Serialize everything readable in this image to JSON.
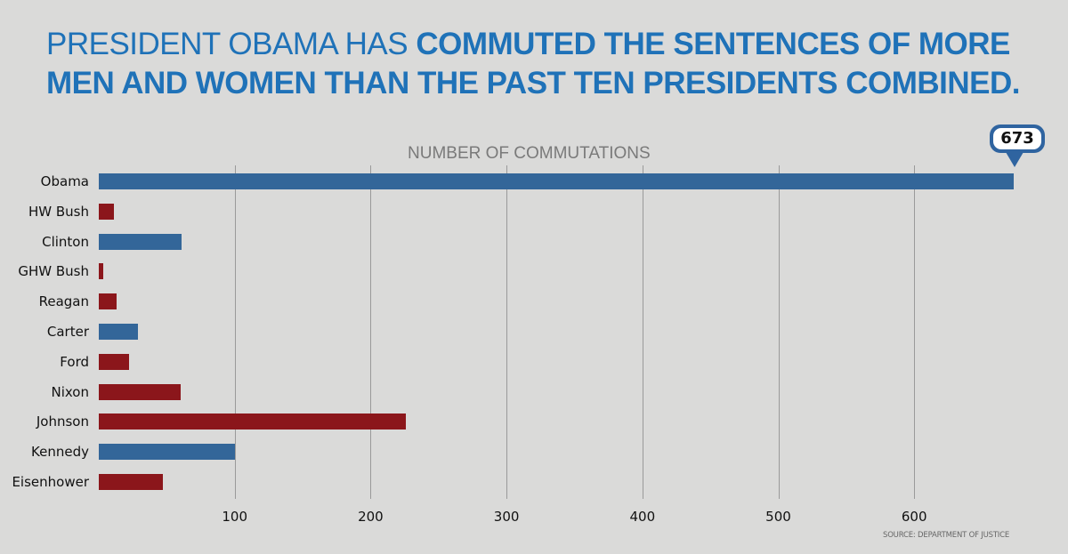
{
  "header": {
    "title_light": "PRESIDENT OBAMA HAS ",
    "title_bold": "COMMUTED THE SENTENCES OF MORE MEN AND WOMEN THAN THE PAST TEN PRESIDENTS COMBINED."
  },
  "callout": {
    "value": "673"
  },
  "source": "SOURCE: DEPARTMENT OF JUSTICE",
  "colors": {
    "democrat": "#336699",
    "republican": "#8b161b",
    "title": "#1f72b8",
    "background": "#dadad9"
  },
  "chart_data": {
    "type": "bar",
    "orientation": "horizontal",
    "title": "PRESIDENT OBAMA HAS COMMUTED THE SENTENCES OF MORE MEN AND WOMEN THAN THE PAST TEN PRESIDENTS COMBINED.",
    "xlabel": "NUMBER OF COMMUTATIONS",
    "ylabel": "",
    "categories": [
      "Obama",
      "HW Bush",
      "Clinton",
      "GHW Bush",
      "Reagan",
      "Carter",
      "Ford",
      "Nixon",
      "Johnson",
      "Kennedy",
      "Eisenhower"
    ],
    "values": [
      673,
      11,
      61,
      3,
      13,
      29,
      22,
      60,
      226,
      100,
      47
    ],
    "bar_colors": [
      "#336699",
      "#8b161b",
      "#336699",
      "#8b161b",
      "#8b161b",
      "#336699",
      "#8b161b",
      "#8b161b",
      "#8b161b",
      "#336699",
      "#8b161b"
    ],
    "xticks": [
      100,
      200,
      300,
      400,
      500,
      600
    ],
    "xlim": [
      0,
      690
    ],
    "grid": true,
    "annotations": [
      {
        "category": "Obama",
        "text": "673"
      }
    ],
    "source": "SOURCE: DEPARTMENT OF JUSTICE"
  }
}
